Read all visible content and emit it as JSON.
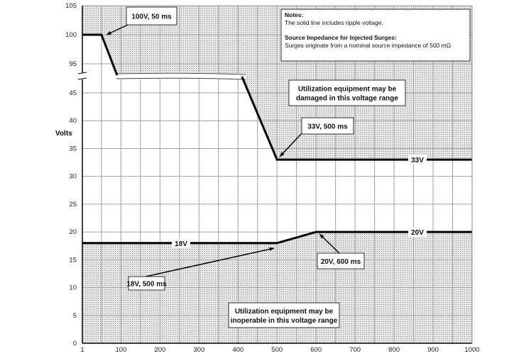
{
  "chart_data": {
    "type": "line",
    "ylabel": "Volts",
    "xlabel": "",
    "xlim": [
      1,
      1000
    ],
    "ylim_lower": [
      0,
      45
    ],
    "ylim_upper": [
      95,
      105
    ],
    "axis_break": "between 45 and 95 V",
    "grid": true,
    "x_ticks": [
      "1",
      "100",
      "200",
      "300",
      "400",
      "500",
      "600",
      "700",
      "800",
      "900",
      "1000"
    ],
    "y_ticks_lower": [
      "0",
      "5",
      "10",
      "15",
      "20",
      "25",
      "30",
      "35",
      "40",
      "45"
    ],
    "y_ticks_upper": [
      "95",
      "100",
      "105"
    ],
    "series": [
      {
        "role": "upper-limit",
        "points": [
          [
            1,
            100
          ],
          [
            50,
            100
          ],
          [
            500,
            33
          ],
          [
            1000,
            33
          ]
        ]
      },
      {
        "role": "lower-limit",
        "points": [
          [
            1,
            18
          ],
          [
            500,
            18
          ],
          [
            600,
            20
          ],
          [
            1000,
            20
          ]
        ]
      }
    ],
    "line_labels": {
      "upper": "33V",
      "lower_left": "18V",
      "lower_right": "20V"
    },
    "annotations": {
      "a100": "100V, 50 ms",
      "a33": "33V, 500 ms",
      "a18": "18V, 500 ms",
      "a20": "20V, 600 ms",
      "damaged": [
        "Utilization equipment may be",
        "damaged in this voltage range"
      ],
      "inoperable": [
        "Utilization equipment may be",
        "inoperable in this voltage range"
      ]
    },
    "notes": {
      "title": "Notes:",
      "line1": "The solid line includes ripple voltage.",
      "title2": "Source Impedance for Injected Surges:",
      "line2": "Surges originate from a nominal source impedance of 500 mΩ"
    },
    "colors": {
      "line": "#000000",
      "shade": "#d9d9d9",
      "grid": "#9a9a9a"
    }
  }
}
